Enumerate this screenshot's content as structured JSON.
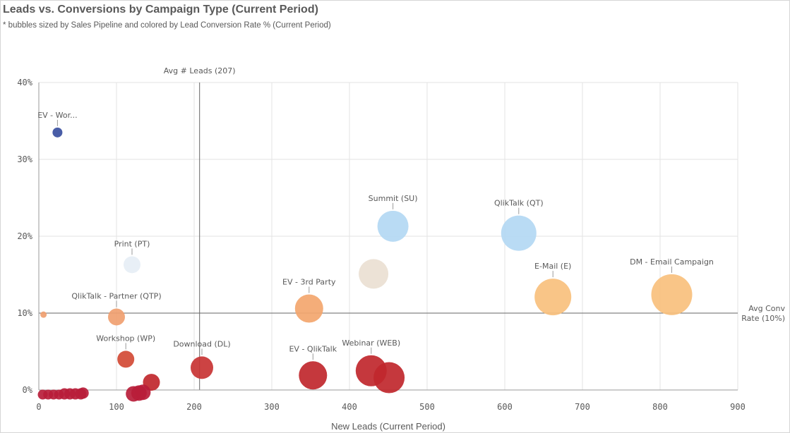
{
  "header": {
    "title": "Leads vs. Conversions by Campaign Type (Current Period)",
    "subtitle": "* bubbles sized by Sales Pipeline and colored by Lead Conversion Rate % (Current Period)"
  },
  "chart_data": {
    "type": "scatter",
    "title": "Leads vs. Conversions by Campaign Type (Current Period)",
    "subtitle": "* bubbles sized by Sales Pipeline and colored by Lead Conversion Rate % (Current Period)",
    "xlabel": "New Leads (Current Period)",
    "ylabel": "",
    "xlim": [
      0,
      900
    ],
    "ylim": [
      0,
      40
    ],
    "x_ticks": [
      "0",
      "100",
      "200",
      "300",
      "400",
      "500",
      "600",
      "700",
      "800",
      "900"
    ],
    "y_ticks": [
      "0%",
      "10%",
      "20%",
      "30%",
      "40%"
    ],
    "grid": true,
    "reference_lines": [
      {
        "axis": "x",
        "value": 207,
        "label": "Avg # Leads (207)"
      },
      {
        "axis": "y",
        "value": 10,
        "label_line1": "Avg Conv",
        "label_line2": "Rate (10%)"
      }
    ],
    "points": [
      {
        "label": "EV - Wor...",
        "x": 24,
        "y": 33.5,
        "size": 7,
        "color": "#3a4fa0"
      },
      {
        "label": "Print (PT)",
        "x": 120,
        "y": 16.3,
        "size": 12,
        "color": "#e6eef5"
      },
      {
        "label": "QlikTalk - Partner (QTP)",
        "x": 100,
        "y": 9.5,
        "size": 12,
        "color": "#f0a070"
      },
      {
        "label": "",
        "x": 6,
        "y": 9.8,
        "size": 4.5,
        "color": "#f0a070"
      },
      {
        "label": "Workshop (WP)",
        "x": 112,
        "y": 4.0,
        "size": 12,
        "color": "#d24a35"
      },
      {
        "label": "Download (DL)",
        "x": 210,
        "y": 2.9,
        "size": 16,
        "color": "#c83333"
      },
      {
        "label": "EV - 3rd Party",
        "x": 348,
        "y": 10.6,
        "size": 20,
        "color": "#f3a66e"
      },
      {
        "label": "Summit (SU)",
        "x": 456,
        "y": 21.3,
        "size": 22,
        "color": "#b3d8f3"
      },
      {
        "label": "",
        "x": 431,
        "y": 15.1,
        "size": 21,
        "color": "#eadfd2"
      },
      {
        "label": "QlikTalk (QT)",
        "x": 618,
        "y": 20.4,
        "size": 25,
        "color": "#b3d8f3"
      },
      {
        "label": "E-Mail (E)",
        "x": 662,
        "y": 12.1,
        "size": 26,
        "color": "#f8c07d"
      },
      {
        "label": "DM - Email Campaign",
        "x": 815,
        "y": 12.4,
        "size": 29,
        "color": "#f8c07d"
      },
      {
        "label": "EV - QlikTalk",
        "x": 353,
        "y": 1.9,
        "size": 20,
        "color": "#c0272d"
      },
      {
        "label": "Webinar (WEB)",
        "x": 428,
        "y": 2.5,
        "size": 22,
        "color": "#c0272d"
      },
      {
        "label": "",
        "x": 451,
        "y": 1.6,
        "size": 22,
        "color": "#c0272d"
      },
      {
        "label": "",
        "x": 145,
        "y": 1.0,
        "size": 12,
        "color": "#c0272d"
      },
      {
        "label": "",
        "x": 122,
        "y": -0.5,
        "size": 11,
        "color": "#b81d3a"
      },
      {
        "label": "",
        "x": 129,
        "y": -0.4,
        "size": 11,
        "color": "#b81d3a"
      },
      {
        "label": "",
        "x": 134,
        "y": -0.3,
        "size": 11,
        "color": "#b81d3a"
      },
      {
        "label": "",
        "x": 5,
        "y": -0.6,
        "size": 7,
        "color": "#b81d3a"
      },
      {
        "label": "",
        "x": 12,
        "y": -0.6,
        "size": 7,
        "color": "#b81d3a"
      },
      {
        "label": "",
        "x": 19,
        "y": -0.6,
        "size": 7,
        "color": "#b81d3a"
      },
      {
        "label": "",
        "x": 26,
        "y": -0.6,
        "size": 7,
        "color": "#b81d3a"
      },
      {
        "label": "",
        "x": 33,
        "y": -0.5,
        "size": 8,
        "color": "#b81d3a"
      },
      {
        "label": "",
        "x": 40,
        "y": -0.5,
        "size": 8,
        "color": "#b81d3a"
      },
      {
        "label": "",
        "x": 47,
        "y": -0.5,
        "size": 8,
        "color": "#b81d3a"
      },
      {
        "label": "",
        "x": 54,
        "y": -0.5,
        "size": 8,
        "color": "#b81d3a"
      },
      {
        "label": "",
        "x": 57,
        "y": -0.4,
        "size": 8,
        "color": "#b81d3a"
      }
    ]
  }
}
